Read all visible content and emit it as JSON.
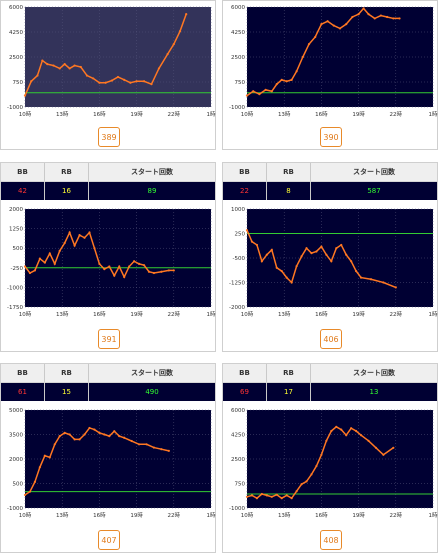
{
  "colors": {
    "plot_bg": "#000033",
    "plot_bg_light": "#33335a",
    "line": "#ff7722",
    "baseline": "#33cc33",
    "bb": "#ff3333",
    "rb": "#ffff33",
    "start": "#33ff33"
  },
  "headers": {
    "bb": "BB",
    "rb": "RB",
    "start": "スタート回数"
  },
  "machines": [
    {
      "id": "389",
      "light": true,
      "stats": null,
      "chart_data": {
        "type": "line",
        "x_ticks": [
          "10時",
          "13時",
          "16時",
          "19時",
          "22時",
          "1時"
        ],
        "y_ticks": [
          "6000",
          "4250",
          "2500",
          "750",
          "-1000"
        ],
        "ylim": [
          -1000,
          6000
        ],
        "xlim": [
          10,
          25
        ],
        "points": [
          [
            10,
            -200
          ],
          [
            10.5,
            800
          ],
          [
            11,
            1200
          ],
          [
            11.4,
            2250
          ],
          [
            11.8,
            2000
          ],
          [
            12.3,
            1900
          ],
          [
            12.8,
            1700
          ],
          [
            13.2,
            2000
          ],
          [
            13.6,
            1700
          ],
          [
            14,
            1900
          ],
          [
            14.5,
            1800
          ],
          [
            15,
            1200
          ],
          [
            15.5,
            1000
          ],
          [
            16,
            700
          ],
          [
            16.5,
            700
          ],
          [
            17,
            850
          ],
          [
            17.5,
            1100
          ],
          [
            18,
            900
          ],
          [
            18.5,
            700
          ],
          [
            19,
            800
          ],
          [
            19.6,
            800
          ],
          [
            20.2,
            600
          ],
          [
            20.8,
            1700
          ],
          [
            21.5,
            2700
          ],
          [
            22,
            3400
          ],
          [
            22.5,
            4300
          ],
          [
            23,
            5500
          ]
        ],
        "baseline": 0
      }
    },
    {
      "id": "390",
      "light": false,
      "stats": null,
      "chart_data": {
        "type": "line",
        "x_ticks": [
          "10時",
          "13時",
          "16時",
          "19時",
          "22時",
          "1時"
        ],
        "y_ticks": [
          "6000",
          "4250",
          "2500",
          "750",
          "-1000"
        ],
        "ylim": [
          -1000,
          6000
        ],
        "xlim": [
          10,
          25
        ],
        "points": [
          [
            10,
            -200
          ],
          [
            10.5,
            100
          ],
          [
            11,
            -100
          ],
          [
            11.5,
            200
          ],
          [
            12,
            100
          ],
          [
            12.4,
            600
          ],
          [
            12.8,
            900
          ],
          [
            13.2,
            800
          ],
          [
            13.6,
            900
          ],
          [
            14,
            1500
          ],
          [
            14.5,
            2500
          ],
          [
            15,
            3400
          ],
          [
            15.5,
            3900
          ],
          [
            16,
            4800
          ],
          [
            16.5,
            5000
          ],
          [
            17,
            4700
          ],
          [
            17.5,
            4500
          ],
          [
            18,
            4800
          ],
          [
            18.5,
            5300
          ],
          [
            19,
            5500
          ],
          [
            19.4,
            5900
          ],
          [
            19.8,
            5500
          ],
          [
            20.3,
            5200
          ],
          [
            20.8,
            5400
          ],
          [
            21.3,
            5300
          ],
          [
            21.8,
            5200
          ],
          [
            22.3,
            5200
          ]
        ],
        "baseline": 0
      }
    },
    {
      "id": "391",
      "light": false,
      "stats": {
        "bb": "42",
        "rb": "16",
        "start": "89"
      },
      "chart_data": {
        "type": "line",
        "x_ticks": [
          "10時",
          "13時",
          "16時",
          "19時",
          "22時",
          "1時"
        ],
        "y_ticks": [
          "2000",
          "1250",
          "500",
          "-250",
          "-1000",
          "-1750"
        ],
        "ylim": [
          -1750,
          2000
        ],
        "xlim": [
          10,
          25
        ],
        "points": [
          [
            10,
            -200
          ],
          [
            10.4,
            -450
          ],
          [
            10.8,
            -350
          ],
          [
            11.2,
            100
          ],
          [
            11.6,
            -50
          ],
          [
            12,
            300
          ],
          [
            12.4,
            -100
          ],
          [
            12.8,
            400
          ],
          [
            13.2,
            700
          ],
          [
            13.6,
            1100
          ],
          [
            14,
            600
          ],
          [
            14.4,
            1000
          ],
          [
            14.8,
            900
          ],
          [
            15.2,
            1100
          ],
          [
            15.6,
            500
          ],
          [
            16,
            -100
          ],
          [
            16.4,
            -300
          ],
          [
            16.8,
            -200
          ],
          [
            17.2,
            -550
          ],
          [
            17.6,
            -200
          ],
          [
            18,
            -600
          ],
          [
            18.4,
            -200
          ],
          [
            18.8,
            0
          ],
          [
            19.2,
            -100
          ],
          [
            19.6,
            -150
          ],
          [
            20,
            -400
          ],
          [
            20.4,
            -450
          ],
          [
            21,
            -400
          ],
          [
            21.6,
            -350
          ],
          [
            22,
            -350
          ]
        ],
        "baseline": -250
      }
    },
    {
      "id": "406",
      "light": false,
      "stats": {
        "bb": "22",
        "rb": "8",
        "start": "587"
      },
      "chart_data": {
        "type": "line",
        "x_ticks": [
          "10時",
          "13時",
          "16時",
          "19時",
          "22時",
          "1時"
        ],
        "y_ticks": [
          "1000",
          "250",
          "-500",
          "-1250",
          "-2000"
        ],
        "ylim": [
          -2000,
          1000
        ],
        "xlim": [
          10,
          25
        ],
        "points": [
          [
            10,
            350
          ],
          [
            10.4,
            0
          ],
          [
            10.8,
            -100
          ],
          [
            11.2,
            -600
          ],
          [
            11.6,
            -400
          ],
          [
            12,
            -250
          ],
          [
            12.4,
            -800
          ],
          [
            12.8,
            -900
          ],
          [
            13.2,
            -1100
          ],
          [
            13.6,
            -1250
          ],
          [
            14,
            -750
          ],
          [
            14.4,
            -450
          ],
          [
            14.8,
            -200
          ],
          [
            15.2,
            -350
          ],
          [
            15.6,
            -300
          ],
          [
            16,
            -150
          ],
          [
            16.4,
            -400
          ],
          [
            16.8,
            -600
          ],
          [
            17.2,
            -200
          ],
          [
            17.6,
            -100
          ],
          [
            18,
            -400
          ],
          [
            18.4,
            -600
          ],
          [
            18.8,
            -900
          ],
          [
            19.2,
            -1100
          ],
          [
            20,
            -1150
          ],
          [
            21,
            -1250
          ],
          [
            22,
            -1400
          ]
        ],
        "baseline": 250
      }
    },
    {
      "id": "407",
      "light": false,
      "stats": {
        "bb": "61",
        "rb": "15",
        "start": "490"
      },
      "chart_data": {
        "type": "line",
        "x_ticks": [
          "10時",
          "13時",
          "16時",
          "19時",
          "22時",
          "1時"
        ],
        "y_ticks": [
          "5000",
          "3500",
          "2000",
          "500",
          "-1000"
        ],
        "ylim": [
          -1000,
          5000
        ],
        "xlim": [
          10,
          25
        ],
        "points": [
          [
            10,
            -200
          ],
          [
            10.4,
            0
          ],
          [
            10.8,
            600
          ],
          [
            11.2,
            1500
          ],
          [
            11.6,
            2200
          ],
          [
            12,
            2100
          ],
          [
            12.4,
            2900
          ],
          [
            12.8,
            3400
          ],
          [
            13.2,
            3600
          ],
          [
            13.6,
            3500
          ],
          [
            14,
            3200
          ],
          [
            14.4,
            3200
          ],
          [
            14.8,
            3500
          ],
          [
            15.2,
            3900
          ],
          [
            15.6,
            3800
          ],
          [
            16,
            3600
          ],
          [
            16.4,
            3500
          ],
          [
            16.8,
            3400
          ],
          [
            17.2,
            3700
          ],
          [
            17.6,
            3400
          ],
          [
            18,
            3300
          ],
          [
            18.6,
            3100
          ],
          [
            19.2,
            2900
          ],
          [
            19.8,
            2900
          ],
          [
            20.4,
            2700
          ],
          [
            21,
            2600
          ],
          [
            21.6,
            2500
          ]
        ],
        "baseline": 0
      }
    },
    {
      "id": "408",
      "light": false,
      "stats": {
        "bb": "69",
        "rb": "17",
        "start": "13"
      },
      "chart_data": {
        "type": "line",
        "x_ticks": [
          "10時",
          "13時",
          "16時",
          "19時",
          "22時",
          "1時"
        ],
        "y_ticks": [
          "6000",
          "4250",
          "2500",
          "750",
          "-1000"
        ],
        "ylim": [
          -1000,
          6000
        ],
        "xlim": [
          10,
          25
        ],
        "points": [
          [
            10,
            -200
          ],
          [
            10.4,
            -100
          ],
          [
            10.8,
            -300
          ],
          [
            11.2,
            0
          ],
          [
            11.6,
            -100
          ],
          [
            12,
            -200
          ],
          [
            12.4,
            -50
          ],
          [
            12.8,
            -300
          ],
          [
            13.2,
            -100
          ],
          [
            13.6,
            -300
          ],
          [
            14,
            200
          ],
          [
            14.4,
            700
          ],
          [
            14.8,
            900
          ],
          [
            15.2,
            1400
          ],
          [
            15.6,
            2000
          ],
          [
            16,
            2800
          ],
          [
            16.4,
            3800
          ],
          [
            16.8,
            4500
          ],
          [
            17.2,
            4800
          ],
          [
            17.6,
            4600
          ],
          [
            18,
            4200
          ],
          [
            18.4,
            4700
          ],
          [
            18.8,
            4500
          ],
          [
            19.2,
            4200
          ],
          [
            19.8,
            3800
          ],
          [
            20.4,
            3300
          ],
          [
            21,
            2800
          ],
          [
            21.8,
            3300
          ]
        ],
        "baseline": 0
      }
    }
  ]
}
